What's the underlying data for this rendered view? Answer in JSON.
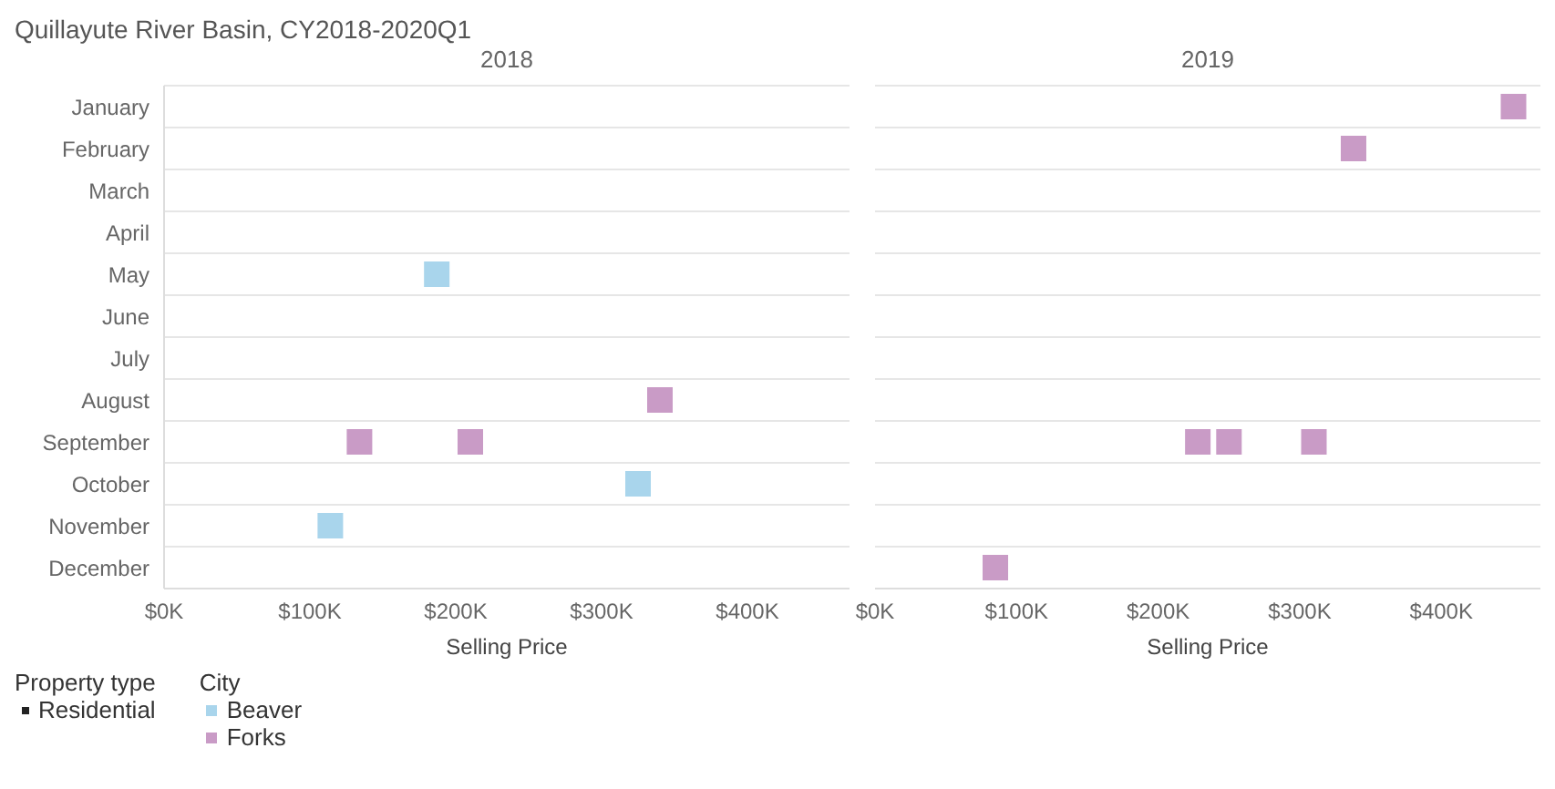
{
  "chart_data": [
    {
      "type": "scatter",
      "title": "Quillayute River Basin, CY2018-2020Q1",
      "subtitle": "2018",
      "orientation": "horizontal",
      "xlabel": "Selling Price",
      "categories": [
        "January",
        "February",
        "March",
        "April",
        "May",
        "June",
        "July",
        "August",
        "September",
        "October",
        "November",
        "December"
      ],
      "xlim": [
        0,
        470000
      ],
      "xticks": [
        {
          "value": 0,
          "label": "$0K"
        },
        {
          "value": 100000,
          "label": "$100K"
        },
        {
          "value": 200000,
          "label": "$200K"
        },
        {
          "value": 300000,
          "label": "$300K"
        },
        {
          "value": 400000,
          "label": "$400K"
        }
      ],
      "series": [
        {
          "name": "Beaver",
          "color": "#a9d5ec",
          "x": [
            "May",
            "October",
            "November"
          ],
          "values": [
            187000,
            325000,
            114000
          ]
        },
        {
          "name": "Forks",
          "color": "#c99bc6",
          "x": [
            "August",
            "September",
            "September"
          ],
          "values": [
            340000,
            134000,
            210000
          ]
        }
      ],
      "marker": "square",
      "grid": "y",
      "legend": "bottom left",
      "legend_title": "City",
      "annotations": [
        "Property type",
        "Residential"
      ]
    },
    {
      "type": "scatter",
      "subtitle": "2019",
      "orientation": "horizontal",
      "xlabel": "Selling Price",
      "categories": [
        "January",
        "February",
        "March",
        "April",
        "May",
        "June",
        "July",
        "August",
        "September",
        "October",
        "November",
        "December"
      ],
      "xlim": [
        0,
        470000
      ],
      "xticks": [
        {
          "value": 0,
          "label": "$0K"
        },
        {
          "value": 100000,
          "label": "$100K"
        },
        {
          "value": 200000,
          "label": "$200K"
        },
        {
          "value": 300000,
          "label": "$300K"
        },
        {
          "value": 400000,
          "label": "$400K"
        }
      ],
      "series": [
        {
          "name": "Forks",
          "color": "#c99bc6",
          "x": [
            "January",
            "February",
            "September",
            "September",
            "September",
            "December"
          ],
          "values": [
            451000,
            338000,
            228000,
            250000,
            310000,
            85000
          ]
        }
      ],
      "marker": "square",
      "grid": "y",
      "tick_labels": "x"
    }
  ]
}
